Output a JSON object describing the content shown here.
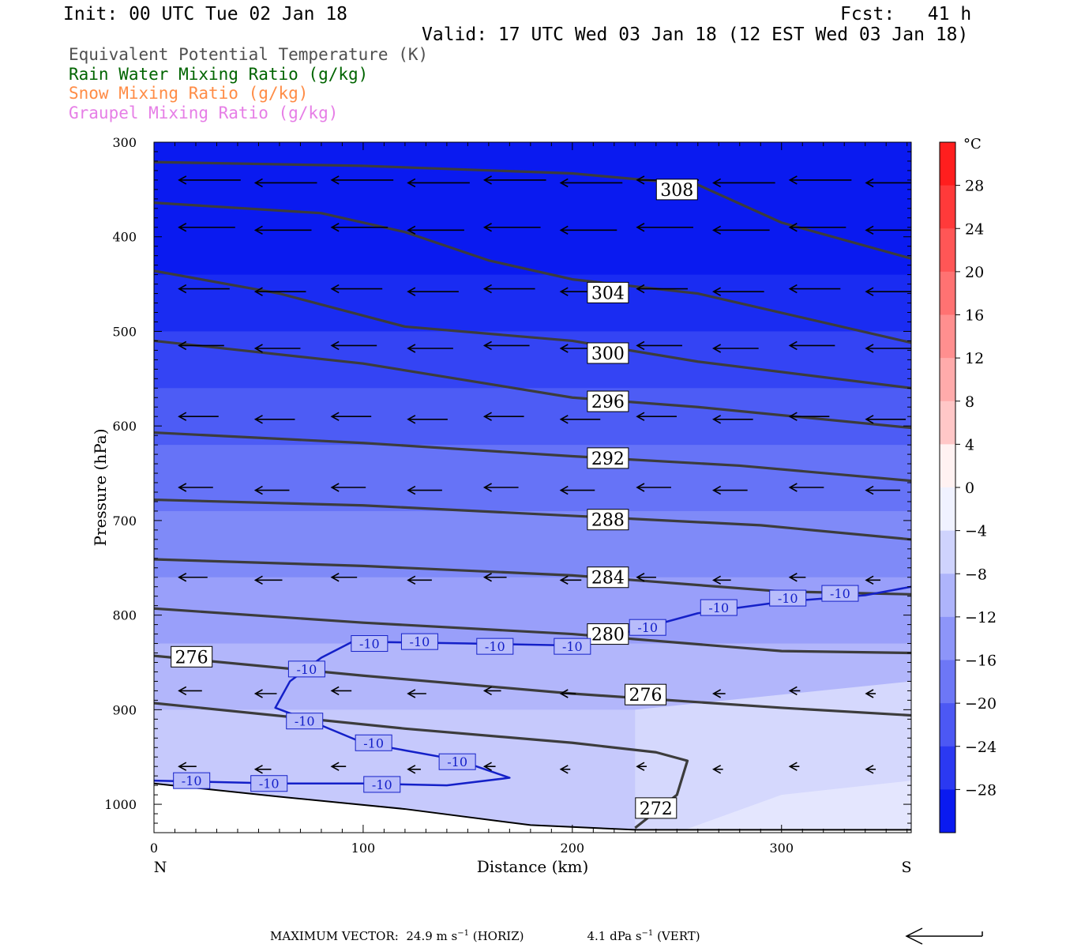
{
  "header": {
    "init": "Init: 00 UTC Tue 02 Jan 18",
    "fcst": "Fcst:   41 h",
    "valid": "Valid: 17 UTC Wed 03 Jan 18 (12 EST Wed 03 Jan 18)"
  },
  "fields": [
    {
      "label": "Equivalent Potential Temperature (K)",
      "color": "#505050"
    },
    {
      "label": "Rain Water Mixing Ratio (g/kg)",
      "color": "#006400"
    },
    {
      "label": "Snow Mixing Ratio (g/kg)",
      "color": "#ff8c46"
    },
    {
      "label": "Graupel Mixing Ratio (g/kg)",
      "color": "#e67ee6"
    }
  ],
  "chart_data": {
    "type": "contour",
    "xlabel": "Distance (km)",
    "ylabel": "Pressure (hPa)",
    "xlim": [
      0,
      362
    ],
    "ylim": [
      1030,
      300
    ],
    "x_ticks": [
      "0",
      "100",
      "200",
      "300"
    ],
    "y_ticks": [
      "300",
      "400",
      "500",
      "600",
      "700",
      "800",
      "900",
      "1000"
    ],
    "x_end_labels": {
      "left": "N",
      "right": "S"
    },
    "theta_e_contours": [
      {
        "value": 308,
        "points": [
          [
            0,
            321
          ],
          [
            100,
            325
          ],
          [
            200,
            333
          ],
          [
            260,
            345
          ],
          [
            300,
            385
          ],
          [
            362,
            423
          ]
        ]
      },
      {
        "value": 304,
        "points": [
          [
            0,
            364
          ],
          [
            80,
            375
          ],
          [
            120,
            395
          ],
          [
            160,
            425
          ],
          [
            200,
            445
          ],
          [
            260,
            460
          ],
          [
            362,
            512
          ]
        ]
      },
      {
        "value": 300,
        "points": [
          [
            0,
            436
          ],
          [
            60,
            460
          ],
          [
            120,
            495
          ],
          [
            200,
            510
          ],
          [
            260,
            532
          ],
          [
            362,
            560
          ]
        ]
      },
      {
        "value": 296,
        "points": [
          [
            0,
            510
          ],
          [
            100,
            534
          ],
          [
            150,
            552
          ],
          [
            200,
            570
          ],
          [
            260,
            580
          ],
          [
            362,
            602
          ]
        ]
      },
      {
        "value": 292,
        "points": [
          [
            0,
            607
          ],
          [
            100,
            618
          ],
          [
            200,
            632
          ],
          [
            280,
            642
          ],
          [
            362,
            658
          ]
        ]
      },
      {
        "value": 288,
        "points": [
          [
            0,
            678
          ],
          [
            100,
            684
          ],
          [
            200,
            695
          ],
          [
            290,
            705
          ],
          [
            362,
            720
          ]
        ]
      },
      {
        "value": 284,
        "points": [
          [
            0,
            741
          ],
          [
            100,
            748
          ],
          [
            200,
            758
          ],
          [
            300,
            775
          ],
          [
            362,
            778
          ]
        ]
      },
      {
        "value": 280,
        "points": [
          [
            0,
            793
          ],
          [
            100,
            808
          ],
          [
            200,
            820
          ],
          [
            300,
            838
          ],
          [
            362,
            840
          ]
        ]
      },
      {
        "value": 276,
        "points": [
          [
            0,
            843
          ],
          [
            100,
            864
          ],
          [
            200,
            883
          ],
          [
            300,
            898
          ],
          [
            362,
            906
          ]
        ]
      },
      {
        "value": 272,
        "points": [
          [
            0,
            893
          ],
          [
            120,
            920
          ],
          [
            200,
            935
          ],
          [
            240,
            945
          ],
          [
            255,
            954
          ],
          [
            250,
            990
          ],
          [
            230,
            1025
          ]
        ]
      }
    ],
    "theta_e_labels": [
      {
        "value": "308",
        "x": 250,
        "p": 350
      },
      {
        "value": "304",
        "x": 217,
        "p": 459
      },
      {
        "value": "300",
        "x": 217,
        "p": 523
      },
      {
        "value": "296",
        "x": 217,
        "p": 574
      },
      {
        "value": "292",
        "x": 217,
        "p": 634
      },
      {
        "value": "288",
        "x": 217,
        "p": 699
      },
      {
        "value": "284",
        "x": 217,
        "p": 760
      },
      {
        "value": "280",
        "x": 217,
        "p": 820
      },
      {
        "value": "276",
        "x": 18,
        "p": 844
      },
      {
        "value": "276",
        "x": 235,
        "p": 884
      },
      {
        "value": "272",
        "x": 240,
        "p": 1004
      }
    ],
    "temperature_contour": {
      "value": -10,
      "points": [
        [
          0,
          975
        ],
        [
          60,
          978
        ],
        [
          100,
          978
        ],
        [
          140,
          980
        ],
        [
          170,
          972
        ],
        [
          145,
          953
        ],
        [
          120,
          943
        ],
        [
          100,
          935
        ],
        [
          75,
          912
        ],
        [
          58,
          898
        ],
        [
          65,
          870
        ],
        [
          80,
          845
        ],
        [
          95,
          828
        ],
        [
          150,
          830
        ],
        [
          200,
          832
        ],
        [
          230,
          816
        ],
        [
          260,
          798
        ],
        [
          300,
          786
        ],
        [
          340,
          779
        ],
        [
          362,
          770
        ]
      ],
      "labels": [
        {
          "value": "-10",
          "x": 18,
          "p": 975
        },
        {
          "value": "-10",
          "x": 55,
          "p": 978
        },
        {
          "value": "-10",
          "x": 109,
          "p": 979
        },
        {
          "value": "-10",
          "x": 145,
          "p": 955
        },
        {
          "value": "-10",
          "x": 105,
          "p": 935
        },
        {
          "value": "-10",
          "x": 72,
          "p": 912
        },
        {
          "value": "-10",
          "x": 73,
          "p": 857
        },
        {
          "value": "-10",
          "x": 103,
          "p": 830
        },
        {
          "value": "-10",
          "x": 127,
          "p": 828
        },
        {
          "value": "-10",
          "x": 163,
          "p": 833
        },
        {
          "value": "-10",
          "x": 200,
          "p": 833
        },
        {
          "value": "-10",
          "x": 236,
          "p": 813
        },
        {
          "value": "-10",
          "x": 270,
          "p": 792
        },
        {
          "value": "-10",
          "x": 303,
          "p": 782
        },
        {
          "value": "-10",
          "x": 328,
          "p": 777
        }
      ]
    },
    "colorbar": {
      "unit": "°C",
      "labels": [
        "28",
        "24",
        "20",
        "16",
        "12",
        "8",
        "4",
        "0",
        "−4",
        "−8",
        "−12",
        "−16",
        "−20",
        "−24",
        "−28"
      ],
      "range": [
        -32,
        32
      ]
    },
    "wind_vectors": {
      "pressure_levels": [
        340,
        390,
        455,
        515,
        590,
        665,
        760,
        880,
        960
      ],
      "max_horiz": "24.9",
      "max_vert": "4.1"
    },
    "footer": {
      "prefix": "MAXIMUM VECTOR:  24.9 m s",
      "horiz_unit": " (HORIZ)",
      "vert": "4.1 dPa s",
      "vert_unit": " (VERT)",
      "exp": "−1"
    }
  }
}
